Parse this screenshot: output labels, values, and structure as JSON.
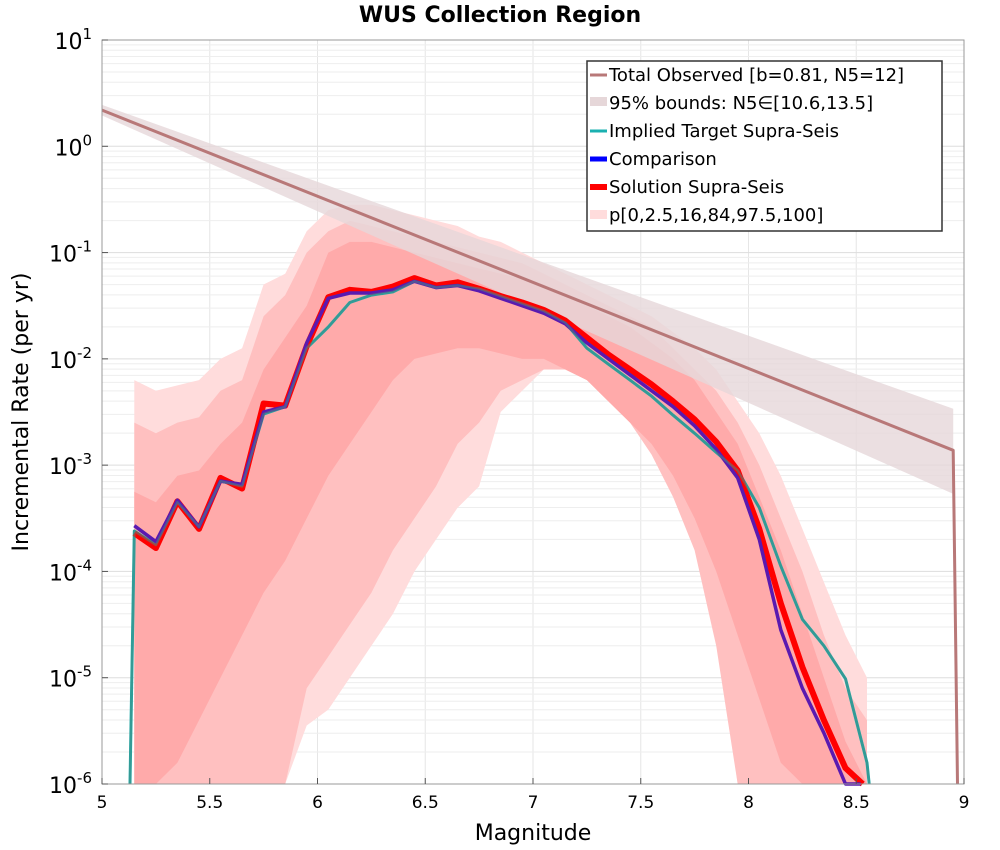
{
  "chart_data": {
    "type": "line",
    "title": "WUS Collection Region",
    "xlabel": "Magnitude",
    "ylabel": "Incremental Rate (per yr)",
    "xlim": [
      5,
      9
    ],
    "ylim_log10": [
      -6,
      1
    ],
    "xticks": [
      {
        "value": 5,
        "label": "5"
      },
      {
        "value": 5.5,
        "label": "5.5"
      },
      {
        "value": 6,
        "label": "6"
      },
      {
        "value": 6.5,
        "label": "6.5"
      },
      {
        "value": 7,
        "label": "7"
      },
      {
        "value": 7.5,
        "label": "7.5"
      },
      {
        "value": 8,
        "label": "8"
      },
      {
        "value": 8.5,
        "label": "8.5"
      },
      {
        "value": 9,
        "label": "9"
      }
    ],
    "yticks": [
      {
        "exp": 1,
        "base": "10",
        "sup": "1"
      },
      {
        "exp": 0,
        "base": "10",
        "sup": "0"
      },
      {
        "exp": -1,
        "base": "10",
        "sup": "-1"
      },
      {
        "exp": -2,
        "base": "10",
        "sup": "-2"
      },
      {
        "exp": -3,
        "base": "10",
        "sup": "-3"
      },
      {
        "exp": -4,
        "base": "10",
        "sup": "-4"
      },
      {
        "exp": -5,
        "base": "10",
        "sup": "-5"
      },
      {
        "exp": -6,
        "base": "10",
        "sup": "-6"
      }
    ],
    "grid": true,
    "legend_position": "top-right",
    "colors": {
      "observed": "#b87878",
      "observed_band": "#e6d7d9",
      "target": "#1ab0b0",
      "target_dark": "#4a8880",
      "comparison": "#0000ff",
      "comparison_blend": "#5a1ab0",
      "solution": "#ff0000",
      "band_outer": "#ffdcdc",
      "band_mid": "#ffc0c0",
      "band_inner": "#ffaaaa"
    },
    "series": [
      {
        "name": "Total Observed [b=0.81, N5=12]",
        "kind": "line",
        "x": [
          5.0,
          8.95,
          8.97
        ],
        "log10_y": [
          0.34,
          -2.86,
          -6.0
        ]
      },
      {
        "name": "95% bounds: N5∈[10.6,13.5]",
        "kind": "band",
        "x": [
          5.0,
          8.95
        ],
        "log10_low": [
          0.29,
          -3.27
        ],
        "log10_high": [
          0.39,
          -2.47
        ]
      },
      {
        "name": "Implied Target Supra-Seis",
        "kind": "line",
        "x": [
          5.13,
          5.15,
          5.25,
          5.35,
          5.45,
          5.55,
          5.65,
          5.75,
          5.85,
          5.95,
          6.05,
          6.15,
          6.25,
          6.35,
          6.45,
          6.55,
          6.65,
          6.75,
          6.85,
          6.95,
          7.05,
          7.15,
          7.25,
          7.35,
          7.45,
          7.55,
          7.65,
          7.75,
          7.85,
          7.95,
          8.05,
          8.15,
          8.25,
          8.35,
          8.45,
          8.55,
          8.56
        ],
        "log10_y": [
          -6.0,
          -3.62,
          -3.75,
          -3.35,
          -3.58,
          -3.15,
          -3.2,
          -2.52,
          -2.45,
          -1.9,
          -1.7,
          -1.47,
          -1.4,
          -1.37,
          -1.27,
          -1.33,
          -1.31,
          -1.34,
          -1.41,
          -1.48,
          -1.55,
          -1.66,
          -1.9,
          -2.05,
          -2.2,
          -2.35,
          -2.53,
          -2.7,
          -2.88,
          -3.05,
          -3.4,
          -3.95,
          -4.45,
          -4.7,
          -5.01,
          -5.8,
          -6.0
        ]
      },
      {
        "name": "Comparison",
        "kind": "line",
        "x": [
          5.15,
          5.25,
          5.35,
          5.45,
          5.55,
          5.65,
          5.75,
          5.85,
          5.95,
          6.05,
          6.15,
          6.25,
          6.35,
          6.45,
          6.55,
          6.65,
          6.75,
          6.85,
          6.95,
          7.05,
          7.15,
          7.25,
          7.35,
          7.45,
          7.55,
          7.65,
          7.75,
          7.85,
          7.95,
          8.05,
          8.15,
          8.25,
          8.35,
          8.45,
          8.52
        ],
        "log10_y": [
          -3.57,
          -3.72,
          -3.33,
          -3.58,
          -3.15,
          -3.18,
          -2.5,
          -2.45,
          -1.85,
          -1.43,
          -1.38,
          -1.38,
          -1.35,
          -1.27,
          -1.33,
          -1.31,
          -1.36,
          -1.43,
          -1.5,
          -1.57,
          -1.67,
          -1.85,
          -2.0,
          -2.15,
          -2.3,
          -2.45,
          -2.63,
          -2.85,
          -3.12,
          -3.7,
          -4.55,
          -5.1,
          -5.52,
          -6.0,
          -6.0
        ]
      },
      {
        "name": "Solution Supra-Seis",
        "kind": "line",
        "x": [
          5.15,
          5.25,
          5.35,
          5.45,
          5.55,
          5.65,
          5.75,
          5.85,
          5.95,
          6.05,
          6.15,
          6.25,
          6.35,
          6.45,
          6.55,
          6.65,
          6.75,
          6.85,
          6.95,
          7.05,
          7.15,
          7.25,
          7.35,
          7.45,
          7.55,
          7.65,
          7.75,
          7.85,
          7.95,
          8.05,
          8.15,
          8.25,
          8.35,
          8.45,
          8.53
        ],
        "log10_y": [
          -3.64,
          -3.78,
          -3.34,
          -3.6,
          -3.12,
          -3.22,
          -2.42,
          -2.44,
          -1.88,
          -1.42,
          -1.35,
          -1.37,
          -1.32,
          -1.24,
          -1.31,
          -1.28,
          -1.34,
          -1.41,
          -1.47,
          -1.54,
          -1.64,
          -1.8,
          -1.96,
          -2.1,
          -2.24,
          -2.4,
          -2.57,
          -2.78,
          -3.05,
          -3.6,
          -4.3,
          -4.9,
          -5.4,
          -5.85,
          -6.0
        ]
      },
      {
        "name": "p[0,2.5,16,84,97.5,100]",
        "kind": "percentile_bands",
        "x": [
          5.15,
          5.25,
          5.35,
          5.45,
          5.55,
          5.65,
          5.75,
          5.85,
          5.95,
          6.05,
          6.15,
          6.25,
          6.35,
          6.45,
          6.55,
          6.65,
          6.75,
          6.85,
          6.95,
          7.05,
          7.15,
          7.25,
          7.35,
          7.45,
          7.55,
          7.65,
          7.75,
          7.85,
          7.95,
          8.05,
          8.15,
          8.25,
          8.35,
          8.45,
          8.55
        ],
        "log10_p0": [
          -6.0,
          -6.0,
          -6.0,
          -6.0,
          -6.0,
          -6.0,
          -6.0,
          -6.0,
          -5.45,
          -5.3,
          -5.0,
          -4.7,
          -4.4,
          -4.0,
          -3.7,
          -3.4,
          -3.2,
          -2.5,
          -2.3,
          -2.1,
          -2.1,
          -2.1,
          -2.3,
          -2.5,
          -2.7,
          -3.3,
          -3.7,
          -4.5,
          -6.0,
          -6.0,
          -6.0,
          -6.0,
          -6.0,
          -6.0,
          -6.0
        ],
        "log10_p2_5": [
          -6.0,
          -6.0,
          -6.0,
          -6.0,
          -6.0,
          -6.0,
          -6.0,
          -6.0,
          -5.1,
          -4.8,
          -4.5,
          -4.2,
          -3.8,
          -3.5,
          -3.2,
          -2.8,
          -2.6,
          -2.3,
          -2.2,
          -2.1,
          -2.1,
          -2.2,
          -2.4,
          -2.6,
          -2.9,
          -3.3,
          -3.8,
          -4.7,
          -6.0,
          -6.0,
          -6.0,
          -6.0,
          -6.0,
          -6.0,
          -6.0
        ],
        "log10_p16": [
          -6.0,
          -6.0,
          -5.8,
          -5.4,
          -5.0,
          -4.6,
          -4.2,
          -3.9,
          -3.5,
          -3.1,
          -2.8,
          -2.5,
          -2.2,
          -2.0,
          -1.95,
          -1.9,
          -1.9,
          -1.95,
          -2.0,
          -2.0,
          -2.1,
          -2.2,
          -2.4,
          -2.6,
          -2.8,
          -3.1,
          -3.5,
          -4.0,
          -4.6,
          -5.2,
          -5.8,
          -6.0,
          -6.0,
          -6.0,
          -6.0
        ],
        "log10_p84": [
          -3.25,
          -3.35,
          -3.1,
          -3.05,
          -2.8,
          -2.6,
          -2.1,
          -1.8,
          -1.5,
          -1.0,
          -0.9,
          -0.9,
          -0.95,
          -1.0,
          -1.05,
          -1.1,
          -1.15,
          -1.2,
          -1.25,
          -1.3,
          -1.4,
          -1.5,
          -1.6,
          -1.7,
          -1.85,
          -2.0,
          -2.2,
          -2.5,
          -2.8,
          -3.3,
          -3.8,
          -4.4,
          -5.0,
          -5.6,
          -6.0
        ],
        "log10_p97_5": [
          -2.6,
          -2.7,
          -2.6,
          -2.55,
          -2.3,
          -2.2,
          -1.6,
          -1.4,
          -1.0,
          -0.8,
          -0.7,
          -0.75,
          -0.8,
          -0.85,
          -0.9,
          -0.95,
          -1.0,
          -1.05,
          -1.1,
          -1.2,
          -1.3,
          -1.4,
          -1.5,
          -1.6,
          -1.7,
          -1.9,
          -2.1,
          -2.3,
          -2.6,
          -3.0,
          -3.5,
          -4.0,
          -4.6,
          -5.1,
          -5.4
        ],
        "log10_p100": [
          -2.2,
          -2.3,
          -2.25,
          -2.2,
          -2.0,
          -1.9,
          -1.3,
          -1.2,
          -0.8,
          -0.6,
          -0.55,
          -0.55,
          -0.6,
          -0.65,
          -0.7,
          -0.75,
          -0.85,
          -0.9,
          -1.0,
          -1.1,
          -1.2,
          -1.3,
          -1.4,
          -1.5,
          -1.6,
          -1.75,
          -1.9,
          -2.1,
          -2.4,
          -2.7,
          -3.1,
          -3.6,
          -4.1,
          -4.6,
          -5.0
        ]
      }
    ]
  }
}
